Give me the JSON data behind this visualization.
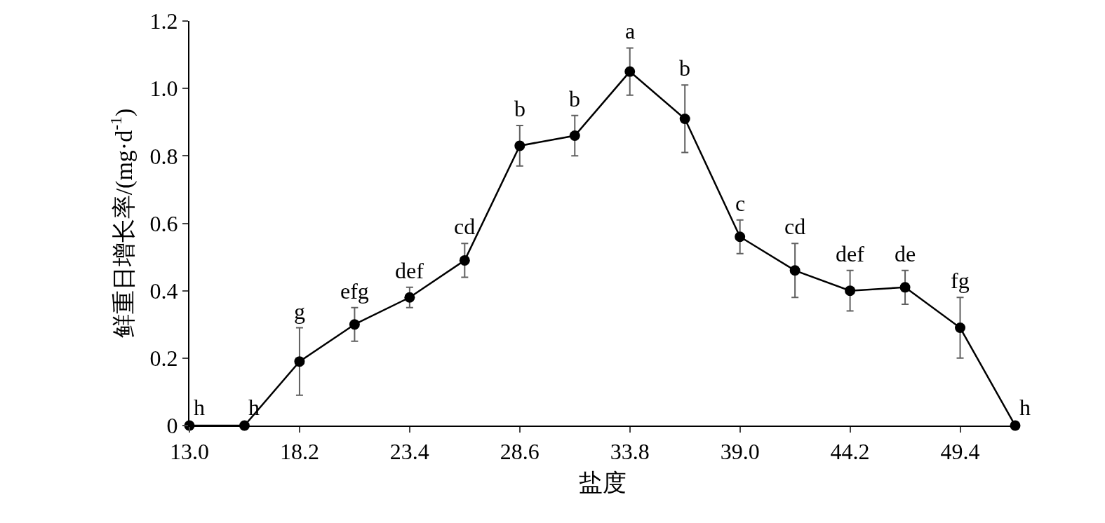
{
  "chart_data": {
    "type": "line",
    "xlabel": "盐度",
    "ylabel": "鲜重日增长率/(mg·d$^{-1}$)",
    "x": [
      13.0,
      15.6,
      18.2,
      20.8,
      23.4,
      26.0,
      28.6,
      31.2,
      33.8,
      36.4,
      39.0,
      41.6,
      44.2,
      46.8,
      49.4,
      52.0
    ],
    "series": [
      {
        "color": "#000000",
        "values": [
          0,
          0,
          0.19,
          0.3,
          0.38,
          0.49,
          0.83,
          0.86,
          1.05,
          0.91,
          0.56,
          0.46,
          0.4,
          0.41,
          0.29,
          0
        ],
        "errors": [
          null,
          null,
          0.1,
          0.05,
          0.03,
          0.05,
          0.06,
          0.06,
          0.07,
          0.1,
          0.05,
          0.08,
          0.06,
          0.05,
          0.09,
          null
        ]
      }
    ],
    "xlim": [
      13.0,
      52.0
    ],
    "xticks": [
      {
        "value": 13.0,
        "label": "13.0"
      },
      {
        "value": 18.2,
        "label": "18.2"
      },
      {
        "value": 23.4,
        "label": "23.4"
      },
      {
        "value": 28.6,
        "label": "28.6"
      },
      {
        "value": 33.8,
        "label": "33.8"
      },
      {
        "value": 39.0,
        "label": "39.0"
      },
      {
        "value": 44.2,
        "label": "44.2"
      },
      {
        "value": 49.4,
        "label": "49.4"
      }
    ],
    "ylim": [
      0,
      1.2
    ],
    "yticks": [
      0,
      0.2,
      0.4,
      0.6,
      0.8,
      {
        "value": 1.0,
        "label": "1.0"
      },
      1.2
    ],
    "marker": "circle",
    "line_style": "solid",
    "legend": false,
    "annotations": [
      {
        "text": "h",
        "x": 13.0,
        "y": 0
      },
      {
        "text": "h",
        "x": 15.6,
        "y": 0
      },
      {
        "text": "g",
        "x": 18.2,
        "y": 0.19
      },
      {
        "text": "efg",
        "x": 20.8,
        "y": 0.3
      },
      {
        "text": "def",
        "x": 23.4,
        "y": 0.38
      },
      {
        "text": "cd",
        "x": 26.0,
        "y": 0.49
      },
      {
        "text": "b",
        "x": 28.6,
        "y": 0.83
      },
      {
        "text": "b",
        "x": 31.2,
        "y": 0.86
      },
      {
        "text": "a",
        "x": 33.8,
        "y": 1.05
      },
      {
        "text": "b",
        "x": 36.4,
        "y": 0.91
      },
      {
        "text": "c",
        "x": 39.0,
        "y": 0.56
      },
      {
        "text": "cd",
        "x": 41.6,
        "y": 0.46
      },
      {
        "text": "def",
        "x": 44.2,
        "y": 0.4
      },
      {
        "text": "de",
        "x": 46.8,
        "y": 0.41
      },
      {
        "text": "fg",
        "x": 49.4,
        "y": 0.29
      },
      {
        "text": "h",
        "x": 52.0,
        "y": 0
      }
    ]
  }
}
